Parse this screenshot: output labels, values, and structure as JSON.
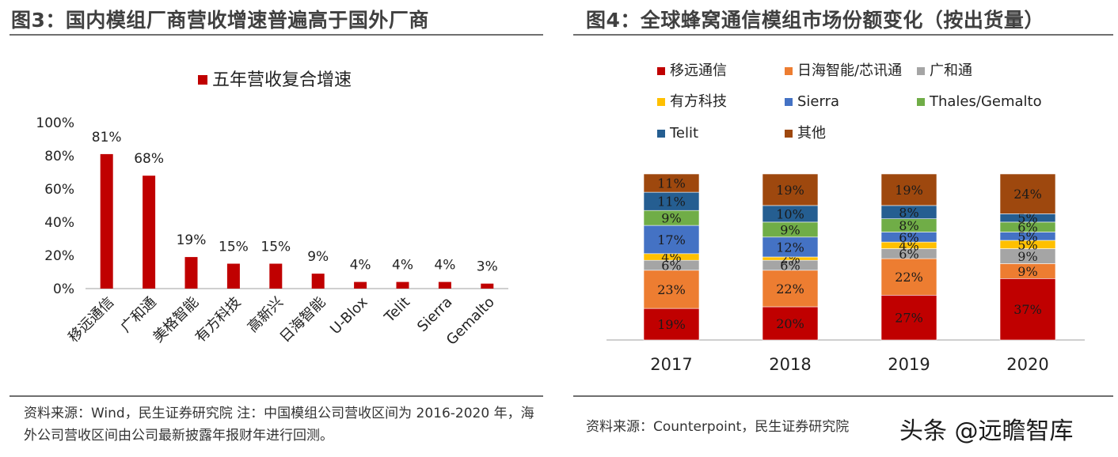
{
  "left": {
    "title": "图3：国内模组厂商营收增速普遍高于国外厂商",
    "source": "资料来源：Wind，民生证券研究院 注：中国模组公司营收区间为 2016-2020 年，海外公司营收区间由公司最新披露年报财年进行回测。"
  },
  "right": {
    "title": "图4：全球蜂窝通信模组市场份额变化（按出货量）",
    "source": "资料来源：Counterpoint，民生证券研究院"
  },
  "watermark": "头条 @远瞻智库",
  "chart_data": [
    {
      "type": "bar",
      "title": "",
      "categories": [
        "移远通信",
        "广和通",
        "美格智能",
        "有方科技",
        "高新兴",
        "日海智能",
        "U-Blox",
        "Telit",
        "Sierra",
        "Gemalto"
      ],
      "series": [
        {
          "name": "五年营收复合增速",
          "values": [
            81,
            68,
            19,
            15,
            15,
            9,
            4,
            4,
            4,
            3
          ],
          "labels": [
            "81%",
            "68%",
            "19%",
            "15%",
            "15%",
            "9%",
            "4%",
            "4%",
            "4%",
            "3%"
          ],
          "color": "#c00000"
        }
      ],
      "ylim": [
        0,
        100
      ],
      "yticks": [
        "0%",
        "20%",
        "40%",
        "60%",
        "80%",
        "100%"
      ],
      "legend": "top",
      "grid": false
    },
    {
      "type": "bar",
      "stacked": true,
      "title": "",
      "categories": [
        "2017",
        "2018",
        "2019",
        "2020"
      ],
      "series": [
        {
          "name": "移远通信",
          "color": "#c00000",
          "values": [
            19,
            20,
            27,
            37
          ],
          "labels": [
            "19%",
            "20%",
            "27%",
            "37%"
          ]
        },
        {
          "name": "日海智能/芯讯通",
          "color": "#ed7d31",
          "values": [
            23,
            22,
            22,
            9
          ],
          "labels": [
            "23%",
            "22%",
            "22%",
            "9%"
          ]
        },
        {
          "name": "广和通",
          "color": "#a5a5a5",
          "values": [
            6,
            6,
            6,
            9
          ],
          "labels": [
            "6%",
            "6%",
            "6%",
            "9%"
          ]
        },
        {
          "name": "有方科技",
          "color": "#ffc000",
          "values": [
            4,
            2,
            4,
            5
          ],
          "labels": [
            "4%",
            "2%",
            "4%",
            "5%"
          ]
        },
        {
          "name": "Sierra",
          "color": "#4472c4",
          "values": [
            17,
            12,
            6,
            5
          ],
          "labels": [
            "17%",
            "12%",
            "6%",
            "5%"
          ]
        },
        {
          "name": "Thales/Gemalto",
          "color": "#70ad47",
          "values": [
            9,
            9,
            8,
            6
          ],
          "labels": [
            "9%",
            "9%",
            "8%",
            "6%"
          ]
        },
        {
          "name": "Telit",
          "color": "#255e91",
          "values": [
            11,
            10,
            8,
            5
          ],
          "labels": [
            "11%",
            "10%",
            "8%",
            "5%"
          ]
        },
        {
          "name": "其他",
          "color": "#9e480e",
          "values": [
            11,
            19,
            19,
            24
          ],
          "labels": [
            "11%",
            "19%",
            "19%",
            "24%"
          ]
        }
      ],
      "ylim": [
        0,
        100
      ],
      "legend": "top",
      "grid": false
    }
  ]
}
